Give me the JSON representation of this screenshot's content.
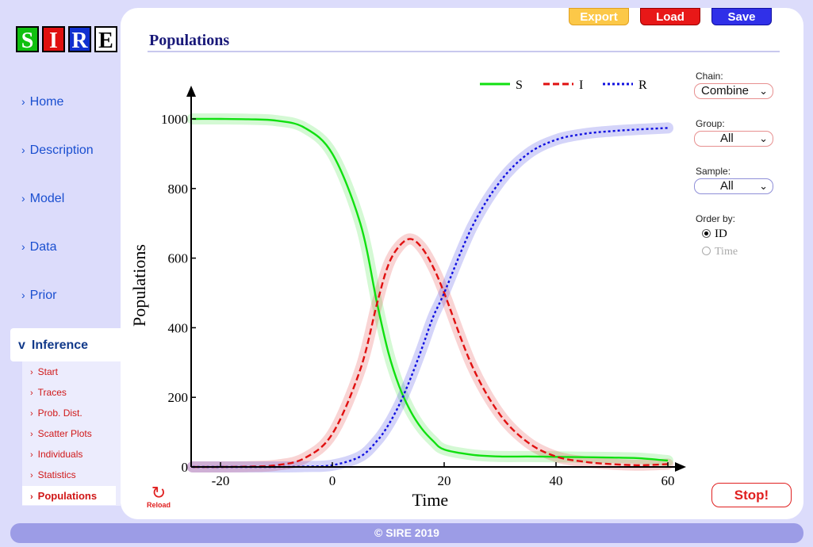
{
  "logo": [
    "S",
    "I",
    "R",
    "E"
  ],
  "nav": {
    "items": [
      "Home",
      "Description",
      "Model",
      "Data",
      "Prior"
    ],
    "active": "Inference",
    "sub_items": [
      "Start",
      "Traces",
      "Prob. Dist.",
      "Scatter Plots",
      "Individuals",
      "Statistics"
    ],
    "sub_active": "Populations"
  },
  "toolbar": {
    "export": "Export",
    "load": "Load",
    "save": "Save"
  },
  "page_title": "Populations",
  "controls": {
    "chain_label": "Chain:",
    "chain_value": "Combine",
    "group_label": "Group:",
    "group_value": "All",
    "sample_label": "Sample:",
    "sample_value": "All",
    "order_label": "Order by:",
    "order_options": [
      "ID",
      "Time"
    ],
    "order_selected": "ID"
  },
  "buttons": {
    "stop": "Stop!",
    "reload": "Reload"
  },
  "footer": "© SIRE 2019",
  "colors": {
    "S": "#10e010",
    "I": "#e01010",
    "R": "#1010e0"
  },
  "chart_data": {
    "type": "line",
    "xlabel": "Time",
    "ylabel": "Populations",
    "xlim": [
      -25,
      60
    ],
    "ylim": [
      0,
      1000
    ],
    "xticks": [
      -20,
      0,
      20,
      40,
      60
    ],
    "yticks": [
      0,
      200,
      400,
      600,
      800,
      1000
    ],
    "legend_position": "top",
    "x": [
      -25,
      -20,
      -15,
      -10,
      -5,
      0,
      5,
      8,
      10,
      12,
      14,
      16,
      18,
      20,
      25,
      30,
      35,
      40,
      45,
      50,
      55,
      60
    ],
    "series": [
      {
        "name": "S",
        "style": "solid",
        "values": [
          1000,
          1000,
          999,
          995,
          975,
          900,
          700,
          470,
          330,
          230,
          160,
          110,
          75,
          50,
          35,
          30,
          30,
          29,
          28,
          27,
          25,
          18
        ]
      },
      {
        "name": "I",
        "style": "dashed",
        "values": [
          0,
          0,
          1,
          5,
          25,
          95,
          280,
          470,
          580,
          635,
          655,
          630,
          575,
          500,
          290,
          150,
          70,
          30,
          15,
          8,
          5,
          8
        ]
      },
      {
        "name": "R",
        "style": "dotted",
        "values": [
          0,
          0,
          0,
          0,
          1,
          5,
          30,
          75,
          120,
          180,
          255,
          340,
          430,
          500,
          690,
          820,
          900,
          940,
          957,
          965,
          970,
          974
        ]
      }
    ]
  }
}
